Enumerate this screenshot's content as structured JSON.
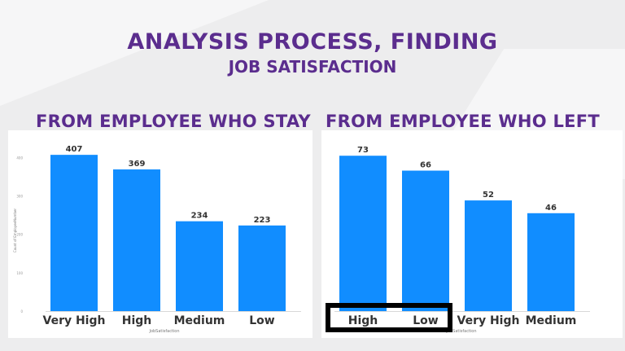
{
  "slide": {
    "title": "ANALYSIS PROCESS, FINDING",
    "subtitle": "JOB SATISFACTION",
    "left_heading": "FROM EMPLOYEE WHO STAY",
    "right_heading": "FROM EMPLOYEE WHO LEFT"
  },
  "colors": {
    "bar": "#118dff",
    "title": "#5b2d8e"
  },
  "chart_data": [
    {
      "type": "bar",
      "categories": [
        "Very High",
        "High",
        "Medium",
        "Low"
      ],
      "values": [
        407,
        369,
        234,
        223
      ],
      "ylabel": "Count of EmployeeNumber",
      "xlabel": "JobSatisfaction",
      "ylim": [
        0,
        420
      ],
      "yticks": [
        0,
        100,
        200,
        300,
        400
      ],
      "grid": false
    },
    {
      "type": "bar",
      "categories": [
        "High",
        "Low",
        "Very High",
        "Medium"
      ],
      "values": [
        73,
        66,
        52,
        46
      ],
      "xlabel": "JobSatisfaction",
      "ylim": [
        0,
        75
      ],
      "grid": false,
      "highlighted_categories": [
        "High",
        "Low"
      ]
    }
  ]
}
